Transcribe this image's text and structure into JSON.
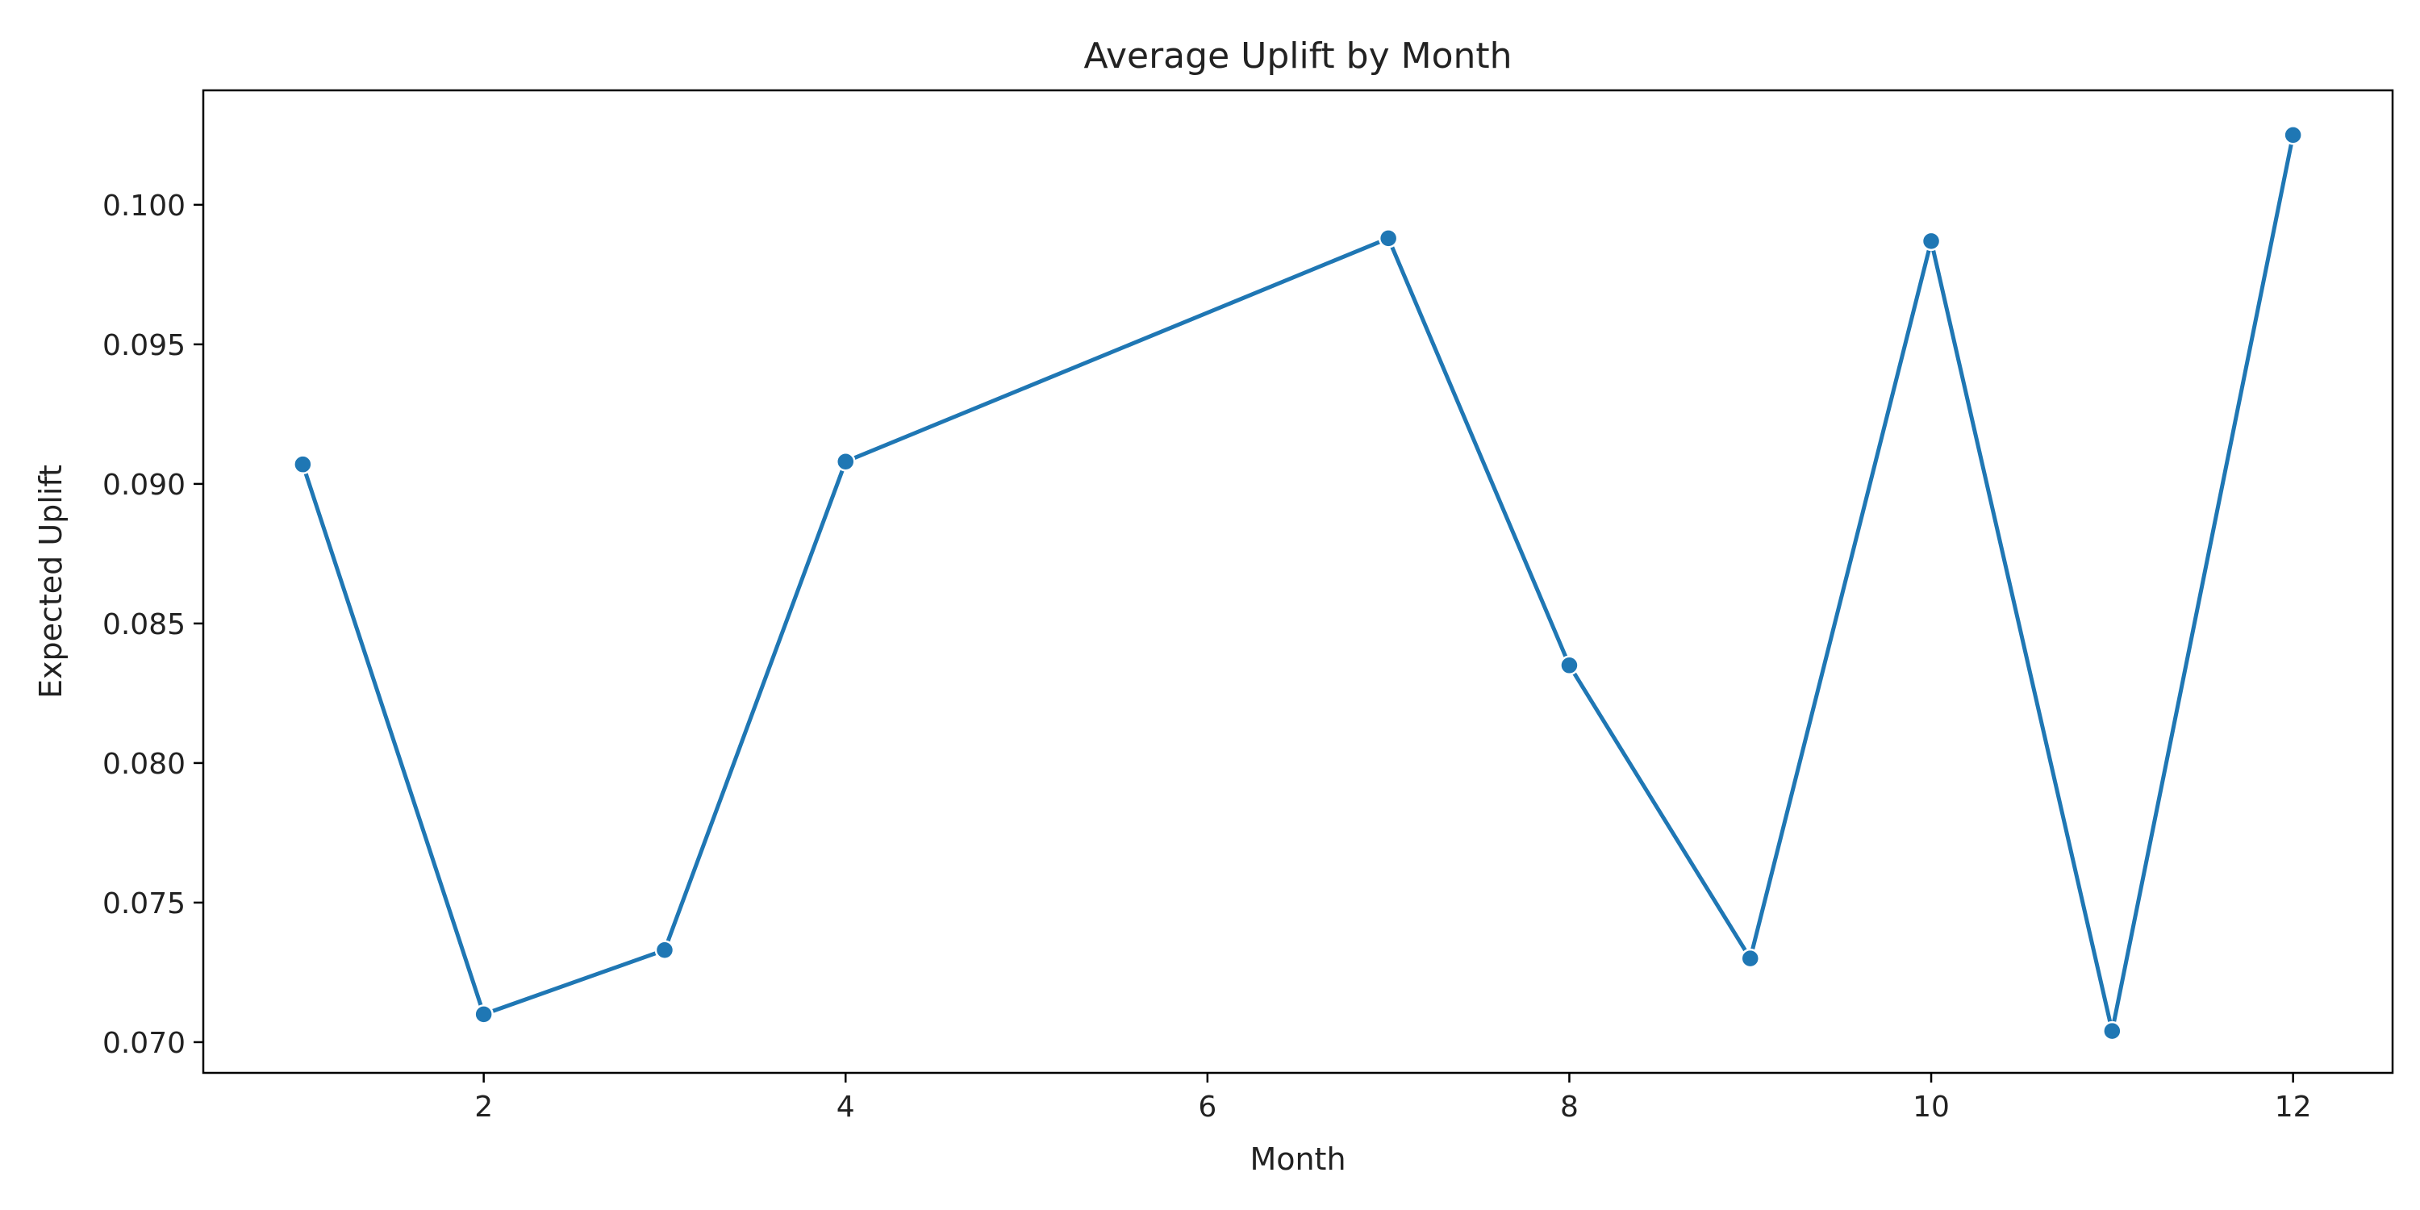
{
  "chart_data": {
    "type": "line",
    "title": "Average Uplift by Month",
    "xlabel": "Month",
    "ylabel": "Expected Uplift",
    "x": [
      1,
      2,
      3,
      4,
      7,
      8,
      9,
      10,
      11,
      12
    ],
    "series": [
      {
        "values": [
          0.0907,
          0.071,
          0.0733,
          0.0908,
          0.0988,
          0.0835,
          0.073,
          0.0987,
          0.0704,
          0.1025
        ]
      }
    ],
    "xlim": [
      0.45,
      12.55
    ],
    "ylim": [
      0.0689,
      0.1041
    ],
    "xticks": [
      2,
      4,
      6,
      8,
      10,
      12
    ],
    "xtick_labels": [
      "2",
      "4",
      "6",
      "8",
      "10",
      "12"
    ],
    "yticks": [
      0.07,
      0.075,
      0.08,
      0.085,
      0.09,
      0.095,
      0.1
    ],
    "ytick_labels": [
      "0.070",
      "0.075",
      "0.080",
      "0.085",
      "0.090",
      "0.095",
      "0.100"
    ],
    "line_color": "#1f77b4",
    "marker": "circle",
    "grid": false,
    "legend": false
  }
}
